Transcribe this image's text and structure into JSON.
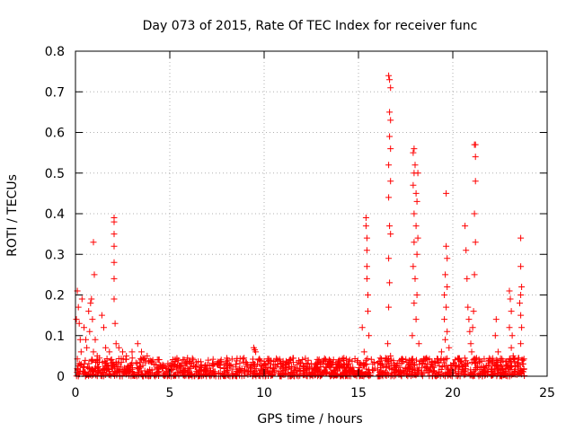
{
  "chart_data": {
    "type": "scatter",
    "title": "Day 073 of 2015, Rate Of TEC Index for receiver func",
    "xlabel": "GPS time / hours",
    "ylabel": "ROTI / TECUs",
    "xlim": [
      0,
      25
    ],
    "ylim": [
      0,
      0.8
    ],
    "xticks": [
      0,
      5,
      10,
      15,
      20,
      25
    ],
    "yticks": [
      0,
      0.1,
      0.2,
      0.3,
      0.4,
      0.5,
      0.6,
      0.7,
      0.8
    ],
    "xtick_labels": [
      "0",
      "5",
      "10",
      "15",
      "20",
      "25"
    ],
    "ytick_labels": [
      "0",
      "0.1",
      "0.2",
      "0.3",
      "0.4",
      "0.5",
      "0.6",
      "0.7",
      "0.8"
    ],
    "grid": true,
    "marker": "+",
    "color": "#ff0000",
    "baseline": {
      "x_range": [
        0,
        23.8
      ],
      "y_range": [
        0,
        0.045
      ]
    },
    "series": [
      {
        "name": "ROTI",
        "points": [
          [
            0.05,
            0.14
          ],
          [
            0.1,
            0.21
          ],
          [
            0.15,
            0.17
          ],
          [
            0.2,
            0.13
          ],
          [
            0.25,
            0.09
          ],
          [
            0.3,
            0.06
          ],
          [
            0.35,
            0.19
          ],
          [
            0.45,
            0.12
          ],
          [
            0.55,
            0.09
          ],
          [
            0.6,
            0.07
          ],
          [
            0.7,
            0.16
          ],
          [
            0.75,
            0.11
          ],
          [
            0.8,
            0.18
          ],
          [
            0.85,
            0.19
          ],
          [
            0.9,
            0.14
          ],
          [
            0.95,
            0.06
          ],
          [
            0.95,
            0.33
          ],
          [
            1.0,
            0.25
          ],
          [
            1.05,
            0.09
          ],
          [
            1.15,
            0.05
          ],
          [
            1.4,
            0.15
          ],
          [
            1.5,
            0.12
          ],
          [
            1.6,
            0.07
          ],
          [
            1.8,
            0.06
          ],
          [
            2.05,
            0.39
          ],
          [
            2.05,
            0.38
          ],
          [
            2.05,
            0.35
          ],
          [
            2.05,
            0.32
          ],
          [
            2.05,
            0.28
          ],
          [
            2.05,
            0.24
          ],
          [
            2.05,
            0.19
          ],
          [
            2.1,
            0.13
          ],
          [
            2.15,
            0.08
          ],
          [
            2.3,
            0.07
          ],
          [
            2.5,
            0.06
          ],
          [
            2.7,
            0.05
          ],
          [
            3.0,
            0.06
          ],
          [
            3.3,
            0.08
          ],
          [
            3.5,
            0.06
          ],
          [
            3.8,
            0.05
          ],
          [
            9.45,
            0.07
          ],
          [
            9.5,
            0.065
          ],
          [
            9.55,
            0.06
          ],
          [
            15.2,
            0.12
          ],
          [
            15.3,
            0.06
          ],
          [
            15.4,
            0.39
          ],
          [
            15.4,
            0.37
          ],
          [
            15.45,
            0.34
          ],
          [
            15.45,
            0.31
          ],
          [
            15.45,
            0.27
          ],
          [
            15.45,
            0.24
          ],
          [
            15.5,
            0.2
          ],
          [
            15.5,
            0.16
          ],
          [
            15.55,
            0.1
          ],
          [
            16.6,
            0.74
          ],
          [
            16.65,
            0.73
          ],
          [
            16.7,
            0.71
          ],
          [
            16.65,
            0.65
          ],
          [
            16.7,
            0.63
          ],
          [
            16.65,
            0.59
          ],
          [
            16.7,
            0.56
          ],
          [
            16.6,
            0.52
          ],
          [
            16.7,
            0.48
          ],
          [
            16.6,
            0.44
          ],
          [
            16.65,
            0.37
          ],
          [
            16.7,
            0.35
          ],
          [
            16.6,
            0.29
          ],
          [
            16.65,
            0.23
          ],
          [
            16.6,
            0.17
          ],
          [
            16.55,
            0.08
          ],
          [
            16.7,
            0.05
          ],
          [
            17.9,
            0.55
          ],
          [
            17.95,
            0.56
          ],
          [
            18.0,
            0.52
          ],
          [
            17.95,
            0.5
          ],
          [
            18.15,
            0.5
          ],
          [
            17.9,
            0.47
          ],
          [
            18.05,
            0.45
          ],
          [
            18.1,
            0.43
          ],
          [
            17.95,
            0.4
          ],
          [
            18.05,
            0.37
          ],
          [
            18.15,
            0.34
          ],
          [
            17.95,
            0.33
          ],
          [
            18.1,
            0.3
          ],
          [
            17.9,
            0.27
          ],
          [
            18.0,
            0.24
          ],
          [
            18.1,
            0.2
          ],
          [
            17.95,
            0.18
          ],
          [
            18.05,
            0.14
          ],
          [
            17.85,
            0.1
          ],
          [
            18.2,
            0.08
          ],
          [
            19.65,
            0.45
          ],
          [
            19.65,
            0.32
          ],
          [
            19.7,
            0.29
          ],
          [
            19.6,
            0.25
          ],
          [
            19.7,
            0.22
          ],
          [
            19.55,
            0.2
          ],
          [
            19.65,
            0.17
          ],
          [
            19.55,
            0.14
          ],
          [
            19.7,
            0.11
          ],
          [
            19.6,
            0.09
          ],
          [
            19.4,
            0.06
          ],
          [
            19.8,
            0.07
          ],
          [
            20.65,
            0.37
          ],
          [
            20.7,
            0.31
          ],
          [
            20.75,
            0.24
          ],
          [
            20.8,
            0.17
          ],
          [
            20.85,
            0.14
          ],
          [
            20.9,
            0.11
          ],
          [
            20.95,
            0.08
          ],
          [
            21.0,
            0.06
          ],
          [
            21.15,
            0.57
          ],
          [
            21.2,
            0.57
          ],
          [
            21.2,
            0.54
          ],
          [
            21.2,
            0.48
          ],
          [
            21.15,
            0.4
          ],
          [
            21.2,
            0.33
          ],
          [
            21.15,
            0.25
          ],
          [
            21.1,
            0.16
          ],
          [
            21.05,
            0.12
          ],
          [
            22.3,
            0.14
          ],
          [
            22.25,
            0.1
          ],
          [
            22.4,
            0.06
          ],
          [
            23.0,
            0.21
          ],
          [
            23.05,
            0.19
          ],
          [
            23.1,
            0.16
          ],
          [
            23.0,
            0.12
          ],
          [
            23.15,
            0.1
          ],
          [
            23.1,
            0.07
          ],
          [
            23.2,
            0.05
          ],
          [
            23.6,
            0.34
          ],
          [
            23.6,
            0.27
          ],
          [
            23.65,
            0.22
          ],
          [
            23.6,
            0.2
          ],
          [
            23.55,
            0.18
          ],
          [
            23.6,
            0.15
          ],
          [
            23.65,
            0.12
          ],
          [
            23.6,
            0.08
          ],
          [
            23.7,
            0.03
          ]
        ]
      }
    ]
  }
}
